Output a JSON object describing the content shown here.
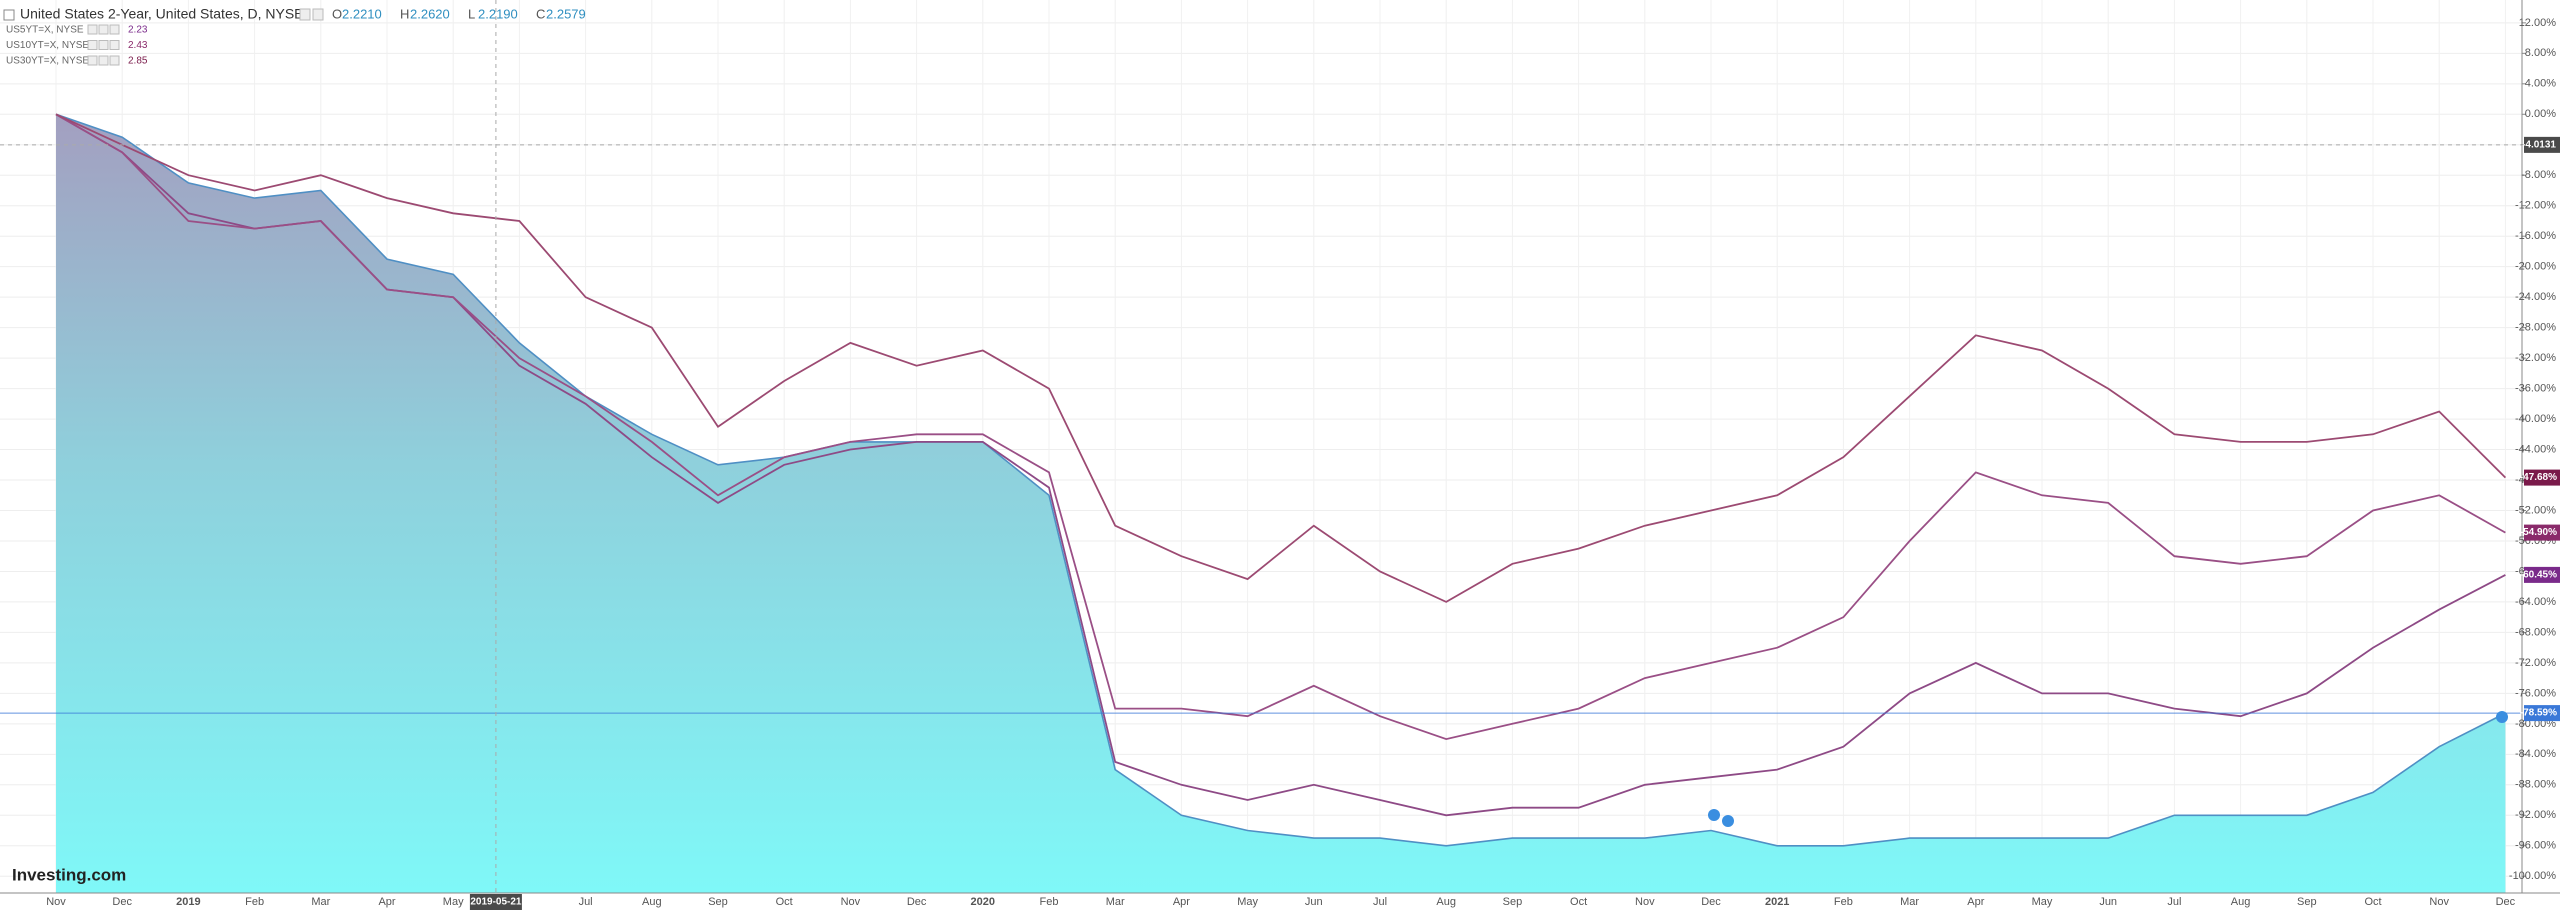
{
  "chart_data": {
    "type": "line",
    "ylim": [
      -102.2,
      15
    ],
    "yticks": [
      {
        "value": 12,
        "label": "12.00%"
      },
      {
        "value": 8,
        "label": "8.00%"
      },
      {
        "value": 4,
        "label": "4.00%"
      },
      {
        "value": 0,
        "label": "0.00%"
      },
      {
        "value": -4,
        "label": "-4.00%"
      },
      {
        "value": -8,
        "label": "-8.00%"
      },
      {
        "value": -12,
        "label": "-12.00%"
      },
      {
        "value": -16,
        "label": "-16.00%"
      },
      {
        "value": -20,
        "label": "-20.00%"
      },
      {
        "value": -24,
        "label": "-24.00%"
      },
      {
        "value": -28,
        "label": "-28.00%"
      },
      {
        "value": -32,
        "label": "-32.00%"
      },
      {
        "value": -36,
        "label": "-36.00%"
      },
      {
        "value": -40,
        "label": "-40.00%"
      },
      {
        "value": -44,
        "label": "-44.00%"
      },
      {
        "value": -48,
        "label": "-48.00%"
      },
      {
        "value": -52,
        "label": "-52.00%"
      },
      {
        "value": -56,
        "label": "-56.00%"
      },
      {
        "value": -60,
        "label": "-60.00%"
      },
      {
        "value": -64,
        "label": "-64.00%"
      },
      {
        "value": -68,
        "label": "-68.00%"
      },
      {
        "value": -72,
        "label": "-72.00%"
      },
      {
        "value": -76,
        "label": "-76.00%"
      },
      {
        "value": -80,
        "label": "-80.00%"
      },
      {
        "value": -84,
        "label": "-84.00%"
      },
      {
        "value": -88,
        "label": "-88.00%"
      },
      {
        "value": -92,
        "label": "-92.00%"
      },
      {
        "value": -96,
        "label": "-96.00%"
      },
      {
        "value": -100,
        "label": "-100.00%"
      }
    ],
    "grid": true,
    "categories": [
      "Nov",
      "Dec",
      "2019",
      "Feb",
      "Mar",
      "Apr",
      "May",
      null,
      "Jul",
      "Aug",
      "Sep",
      "Oct",
      "Nov",
      "Dec",
      "2020",
      "Feb",
      "Mar",
      "Apr",
      "May",
      "Jun",
      "Jul",
      "Aug",
      "Sep",
      "Oct",
      "Nov",
      "Dec",
      "2021",
      "Feb",
      "Mar",
      "Apr",
      "May",
      "Jun",
      "Jul",
      "Aug",
      "Sep",
      "Oct",
      "Nov",
      "Dec"
    ],
    "ohlc_keys": [
      "O",
      "H",
      "L",
      "C"
    ],
    "ohlc": [
      {
        "value": 2.221,
        "label": "2.2210"
      },
      {
        "value": 2.262,
        "label": "2.2620"
      },
      {
        "value": 2.219,
        "label": "2.2190"
      },
      2.2579
    ],
    "crosshair": {
      "date": "2019-05-21",
      "value": -4.0131
    },
    "brand": "Investing.com",
    "series": [
      {
        "name": "United States 2-Year, United States, D, NYSE",
        "style": "area",
        "color": "#4f8fc4",
        "last_value": {
          "value": -78.59,
          "label": "-78.59%"
        },
        "last_color": "#3a78d8",
        "values": [
          0,
          -3,
          -9,
          -11,
          -10,
          -19,
          -21,
          -30,
          -37,
          -42,
          -46,
          -45,
          -43,
          -43,
          -43,
          -50,
          -86,
          -92,
          -94,
          -95,
          -95,
          -96,
          -95,
          -95,
          -95,
          -94,
          -96,
          -96,
          -95,
          -95,
          -95,
          -95,
          -92,
          -92,
          -92,
          -89,
          -83,
          -78.59
        ]
      },
      {
        "name": "US5YT=X, NYSE",
        "legend_value": 2.23,
        "style": "line",
        "color": "#8e4a86",
        "last_value": {
          "value": -60.45,
          "label": "-60.45%"
        },
        "last_color": "#7a2a8a",
        "values": [
          0,
          -5,
          -13,
          -15,
          -14,
          -23,
          -24,
          -33,
          -38,
          -45,
          -51,
          -46,
          -44,
          -43,
          -43,
          -49,
          -85,
          -88,
          -90,
          -88,
          -90,
          -92,
          -91,
          -91,
          -88,
          -87,
          -86,
          -83,
          -76,
          -72,
          -76,
          -76,
          -78,
          -79,
          -76,
          -70,
          -65,
          -60.45
        ]
      },
      {
        "name": "US10YT=X, NYSE",
        "legend_value": 2.43,
        "style": "line",
        "color": "#9a4f86",
        "last_value": {
          "value": -54.9,
          "label": "-54.90%"
        },
        "last_color": "#8a2a6a",
        "values": [
          0,
          -5,
          -14,
          -15,
          -14,
          -23,
          -24,
          -32,
          -37,
          -43,
          -50,
          -45,
          -43,
          -42,
          -42,
          -47,
          -78,
          -78,
          -79,
          -75,
          -79,
          -82,
          -80,
          -78,
          -74,
          -72,
          -70,
          -66,
          -56,
          -47,
          -50,
          -51,
          -58,
          -59,
          -58,
          -52,
          -50,
          -54.9
        ]
      },
      {
        "name": "US30YT=X, NYSE",
        "legend_value": 2.85,
        "style": "line",
        "color": "#9c4a72",
        "last_value": {
          "value": -47.68,
          "label": "-47.68%"
        },
        "last_color": "#7a1a4a",
        "values": [
          0,
          -4,
          -8,
          -10,
          -8,
          -11,
          -13,
          -14,
          -24,
          -28,
          -41,
          -35,
          -30,
          -33,
          -31,
          -36,
          -54,
          -58,
          -61,
          -54,
          -60,
          -64,
          -59,
          -57,
          -54,
          -52,
          -50,
          -45,
          -37,
          -29,
          -31,
          -36,
          -42,
          -43,
          -43,
          -42,
          -39,
          -47.68
        ]
      }
    ]
  }
}
